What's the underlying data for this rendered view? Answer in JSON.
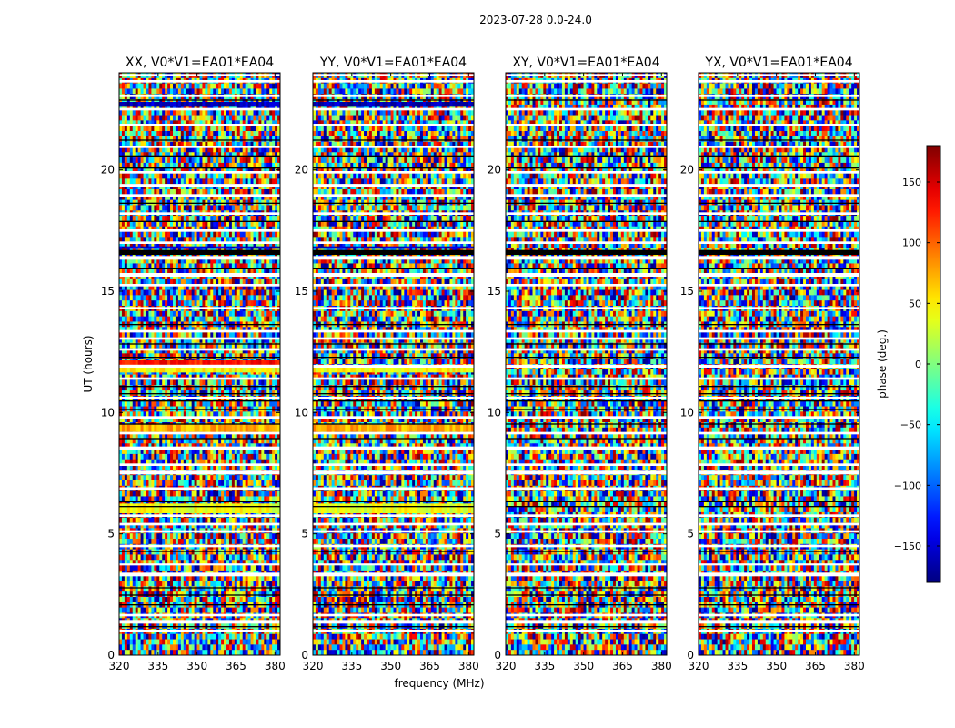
{
  "figure": {
    "title": "2023-07-28 0.0-24.0"
  },
  "chart_data": {
    "type": "heatmap",
    "xlabel": "frequency (MHz)",
    "ylabel": "UT (hours)",
    "xlim": [
      320,
      382
    ],
    "ylim": [
      0,
      24
    ],
    "xticks": [
      320,
      335,
      350,
      365,
      380
    ],
    "yticks": [
      0,
      5,
      10,
      15,
      20
    ],
    "panels": [
      {
        "title": "XX, V0*V1=EA01*EA04"
      },
      {
        "title": "YY, V0*V1=EA01*EA04"
      },
      {
        "title": "XY, V0*V1=EA01*EA04"
      },
      {
        "title": "YX, V0*V1=EA01*EA04"
      }
    ],
    "white_bands": [
      [
        0.95,
        1.05
      ],
      [
        1.3,
        1.45
      ],
      [
        1.6,
        1.7
      ],
      [
        3.25,
        3.4
      ],
      [
        3.7,
        3.78
      ],
      [
        4.45,
        4.55
      ],
      [
        5.05,
        5.15
      ],
      [
        5.35,
        5.45
      ],
      [
        5.7,
        5.8
      ],
      [
        6.8,
        6.92
      ],
      [
        7.45,
        7.6
      ],
      [
        7.8,
        7.9
      ],
      [
        8.45,
        8.6
      ],
      [
        9.1,
        9.2
      ],
      [
        9.75,
        9.85
      ],
      [
        10.55,
        10.65
      ],
      [
        11.35,
        11.45
      ],
      [
        11.85,
        11.97
      ],
      [
        12.55,
        12.65
      ],
      [
        13.0,
        13.1
      ],
      [
        13.3,
        13.4
      ],
      [
        14.25,
        14.35
      ],
      [
        15.2,
        15.3
      ],
      [
        15.6,
        15.75
      ],
      [
        16.3,
        16.45
      ],
      [
        16.95,
        17.05
      ],
      [
        17.45,
        17.55
      ],
      [
        18.15,
        18.25
      ],
      [
        18.9,
        19.0
      ],
      [
        19.3,
        19.42
      ],
      [
        19.85,
        19.95
      ],
      [
        20.9,
        21.0
      ],
      [
        21.8,
        21.9
      ],
      [
        22.45,
        22.55
      ],
      [
        23.0,
        23.1
      ],
      [
        23.6,
        23.7
      ],
      [
        23.85,
        23.95
      ]
    ],
    "black_bands": [
      [
        1.15,
        1.2
      ],
      [
        2.05,
        2.1
      ],
      [
        2.45,
        2.5
      ],
      [
        2.75,
        2.8
      ],
      [
        4.25,
        4.3
      ],
      [
        6.1,
        6.15
      ],
      [
        6.3,
        6.35
      ],
      [
        8.9,
        8.95
      ],
      [
        9.5,
        9.55
      ],
      [
        10.1,
        10.15
      ],
      [
        10.45,
        10.5
      ],
      [
        10.75,
        10.8
      ],
      [
        11.05,
        11.1
      ],
      [
        12.25,
        12.3
      ],
      [
        12.8,
        12.85
      ],
      [
        13.6,
        13.65
      ],
      [
        15.9,
        15.95
      ],
      [
        16.5,
        16.7
      ],
      [
        17.85,
        17.9
      ],
      [
        18.6,
        18.65
      ],
      [
        20.05,
        20.1
      ],
      [
        20.55,
        20.6
      ],
      [
        21.2,
        21.25
      ],
      [
        22.85,
        22.9
      ]
    ],
    "color_bands": [
      {
        "panels": [
          0,
          1
        ],
        "range": [
          5.85,
          6.25
        ],
        "phase": 40
      },
      {
        "panels": [
          0,
          1
        ],
        "range": [
          9.2,
          9.5
        ],
        "phase": 75
      },
      {
        "panels": [
          0
        ],
        "range": [
          11.95,
          12.15
        ],
        "phase": 130
      },
      {
        "panels": [
          0,
          1
        ],
        "range": [
          11.65,
          11.85
        ],
        "phase": 45
      },
      {
        "panels": [
          0,
          1
        ],
        "range": [
          16.75,
          16.85
        ],
        "phase": -150
      },
      {
        "panels": [
          0,
          1
        ],
        "range": [
          22.6,
          22.8
        ],
        "phase": -160
      }
    ],
    "colorbar": {
      "label": "phase (deg.)",
      "range": [
        -180,
        180
      ],
      "ticks": [
        -150,
        -100,
        -50,
        0,
        50,
        100,
        150
      ],
      "tick_labels": [
        "−150",
        "−100",
        "−50",
        "0",
        "50",
        "100",
        "150"
      ],
      "colormap": "jet"
    }
  }
}
